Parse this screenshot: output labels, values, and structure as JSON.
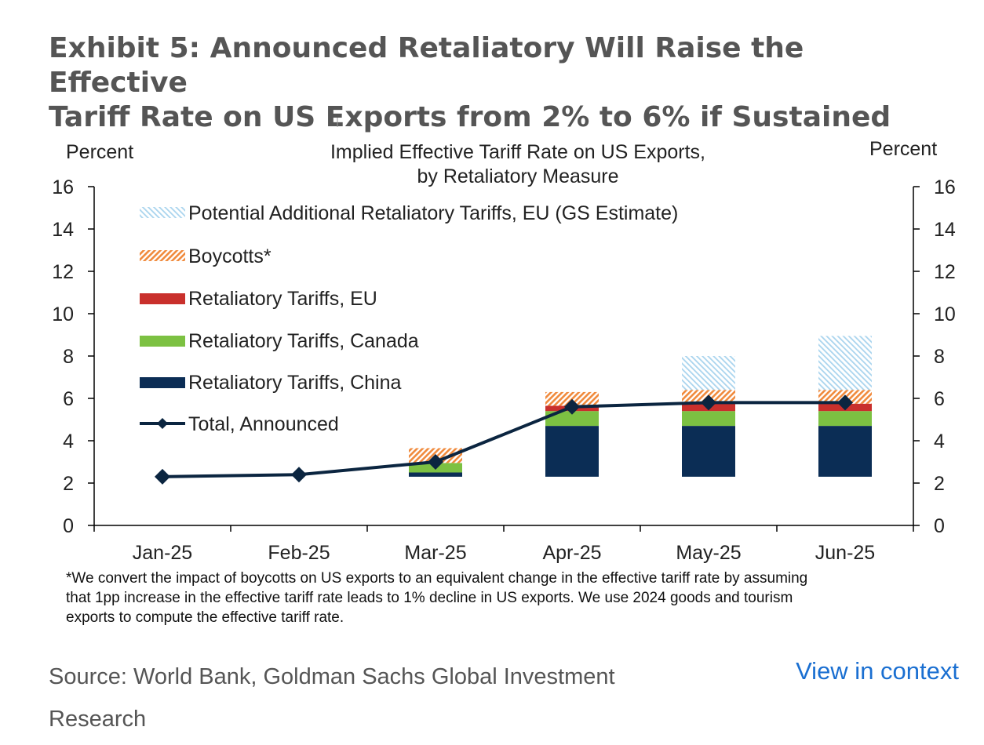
{
  "exhibit": {
    "title_line1": "Exhibit 5: Announced Retaliatory Will Raise the Effective",
    "title_line2": "Tariff Rate on US Exports from 2% to 6% if Sustained"
  },
  "source_text": "Source: World Bank, Goldman Sachs Global Investment Research",
  "view_link": "View in context",
  "chart_data": {
    "type": "bar",
    "title_line1": "Implied Effective Tariff Rate on US Exports,",
    "title_line2": "by Retaliatory Measure",
    "ylabel_left": "Percent",
    "ylabel_right": "Percent",
    "ylim": [
      0,
      16
    ],
    "yticks": [
      0,
      2,
      4,
      6,
      8,
      10,
      12,
      14,
      16
    ],
    "categories": [
      "Jan-25",
      "Feb-25",
      "Mar-25",
      "Apr-25",
      "May-25",
      "Jun-25"
    ],
    "bar_base": [
      2.3,
      2.3,
      2.3,
      2.3,
      2.3,
      2.3
    ],
    "series": [
      {
        "name": "Retaliatory Tariffs, China",
        "kind": "bar",
        "color": "#0b2d55",
        "values": [
          0,
          0,
          0.2,
          2.4,
          2.4,
          2.4
        ]
      },
      {
        "name": "Retaliatory Tariffs, Canada",
        "kind": "bar",
        "color": "#7cc142",
        "values": [
          0,
          0,
          0.45,
          0.7,
          0.7,
          0.7
        ]
      },
      {
        "name": "Retaliatory Tariffs, EU",
        "kind": "bar",
        "color": "#c9302c",
        "values": [
          0,
          0,
          0,
          0.25,
          0.35,
          0.35
        ]
      },
      {
        "name": "Boycotts*",
        "kind": "bar",
        "color": "#f08a3c",
        "values": [
          0,
          0,
          0.7,
          0.65,
          0.65,
          0.65
        ]
      },
      {
        "name": "Potential Additional Retaliatory Tariffs, EU (GS Estimate)",
        "kind": "bar",
        "color": "#a9d4ee",
        "values": [
          0,
          0,
          0,
          0,
          1.6,
          2.55
        ]
      },
      {
        "name": "Total, Announced",
        "kind": "line",
        "color": "#0b2540",
        "values": [
          2.3,
          2.4,
          3.0,
          5.6,
          5.8,
          5.8
        ]
      }
    ],
    "footnote_lines": [
      "*We convert the impact of boycotts on US exports to an equivalent change in the effective tariff rate by assuming",
      "that 1pp increase in the effective tariff rate leads to 1% decline in US exports. We use 2024 goods and tourism",
      "exports to compute the effective tariff rate."
    ],
    "grid": false,
    "legend_placement": "top-left"
  }
}
